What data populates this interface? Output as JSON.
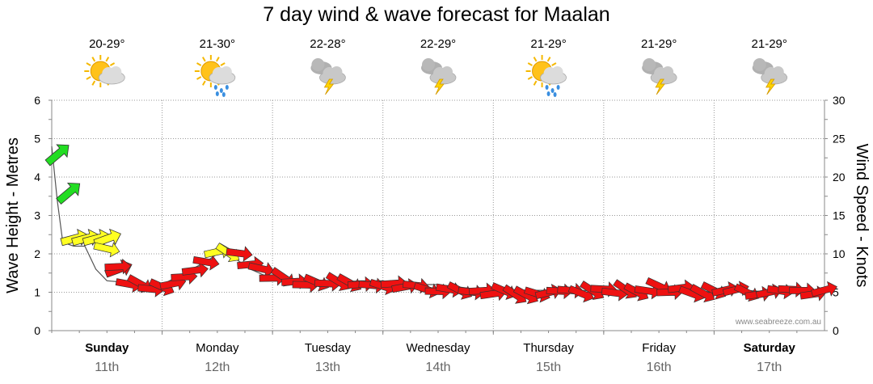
{
  "title": "7 day wind & wave forecast for Maalan",
  "watermark": "www.seabreeze.com.au",
  "days": [
    {
      "day": "Sunday",
      "date": "11th",
      "temp": "20-29°",
      "icon": "partly-cloudy-icon",
      "bold": true
    },
    {
      "day": "Monday",
      "date": "12th",
      "temp": "21-30°",
      "icon": "sun-showers-icon",
      "bold": false
    },
    {
      "day": "Tuesday",
      "date": "13th",
      "temp": "22-28°",
      "icon": "storm-icon",
      "bold": false
    },
    {
      "day": "Wednesday",
      "date": "14th",
      "temp": "22-29°",
      "icon": "storm-icon",
      "bold": false
    },
    {
      "day": "Thursday",
      "date": "15th",
      "temp": "21-29°",
      "icon": "sun-showers-icon",
      "bold": false
    },
    {
      "day": "Friday",
      "date": "16th",
      "temp": "21-29°",
      "icon": "storm-icon",
      "bold": false
    },
    {
      "day": "Saturday",
      "date": "17th",
      "temp": "21-29°",
      "icon": "storm-icon",
      "bold": true
    }
  ],
  "colors": {
    "high": "#22dd22",
    "mid": "#ffff22",
    "low": "#ee1111",
    "grid": "#999999"
  },
  "chart_data": {
    "type": "line",
    "ylabel": "Wave Height - Metres",
    "y2label": "Wind Speed - Knots",
    "ylim": [
      0,
      6
    ],
    "y2lim": [
      0,
      30
    ],
    "yticks": [
      0,
      1,
      2,
      3,
      4,
      5,
      6
    ],
    "y2ticks": [
      0,
      5,
      10,
      15,
      20,
      25,
      30
    ],
    "grid": true,
    "wave_height_m": [
      [
        0.0,
        4.8
      ],
      [
        0.05,
        3.4
      ],
      [
        0.1,
        2.3
      ],
      [
        0.2,
        2.2
      ],
      [
        0.3,
        2.2
      ],
      [
        0.4,
        1.6
      ],
      [
        0.5,
        1.3
      ],
      [
        0.7,
        1.25
      ],
      [
        0.9,
        1.15
      ],
      [
        1.0,
        1.2
      ],
      [
        1.2,
        1.5
      ],
      [
        1.4,
        1.8
      ],
      [
        1.5,
        2.0
      ],
      [
        1.6,
        2.0
      ],
      [
        1.8,
        1.6
      ],
      [
        2.0,
        1.35
      ],
      [
        2.3,
        1.25
      ],
      [
        2.5,
        1.25
      ],
      [
        2.8,
        1.3
      ],
      [
        3.0,
        1.3
      ],
      [
        3.3,
        1.2
      ],
      [
        3.5,
        1.2
      ],
      [
        3.8,
        1.1
      ],
      [
        4.0,
        1.1
      ],
      [
        4.3,
        1.05
      ],
      [
        4.5,
        1.05
      ],
      [
        4.8,
        1.05
      ],
      [
        5.0,
        1.0
      ],
      [
        5.3,
        1.05
      ],
      [
        5.5,
        1.1
      ],
      [
        5.8,
        1.05
      ],
      [
        6.0,
        1.0
      ],
      [
        6.3,
        1.05
      ],
      [
        6.5,
        1.0
      ],
      [
        6.8,
        1.0
      ],
      [
        7.0,
        1.0
      ]
    ],
    "wind_knots": [
      [
        0.0,
        23
      ],
      [
        0.1,
        18
      ],
      [
        0.2,
        12
      ],
      [
        0.3,
        12
      ],
      [
        0.45,
        12
      ],
      [
        0.6,
        8
      ],
      [
        0.7,
        6
      ],
      [
        0.9,
        5.5
      ],
      [
        1.0,
        5.5
      ],
      [
        1.2,
        7
      ],
      [
        1.4,
        9
      ],
      [
        1.5,
        10
      ],
      [
        1.6,
        10.5
      ],
      [
        1.8,
        9
      ],
      [
        2.0,
        7
      ],
      [
        2.3,
        6
      ],
      [
        2.5,
        6
      ],
      [
        2.8,
        6
      ],
      [
        3.0,
        6
      ],
      [
        3.3,
        5.5
      ],
      [
        3.5,
        5.5
      ],
      [
        3.8,
        5
      ],
      [
        4.0,
        5
      ],
      [
        4.3,
        5
      ],
      [
        4.5,
        5
      ],
      [
        4.8,
        5
      ],
      [
        5.0,
        5
      ],
      [
        5.3,
        5
      ],
      [
        5.5,
        5.5
      ],
      [
        5.8,
        5
      ],
      [
        6.0,
        5
      ],
      [
        6.3,
        5
      ],
      [
        6.5,
        5
      ],
      [
        6.8,
        5
      ],
      [
        7.0,
        5
      ]
    ]
  }
}
